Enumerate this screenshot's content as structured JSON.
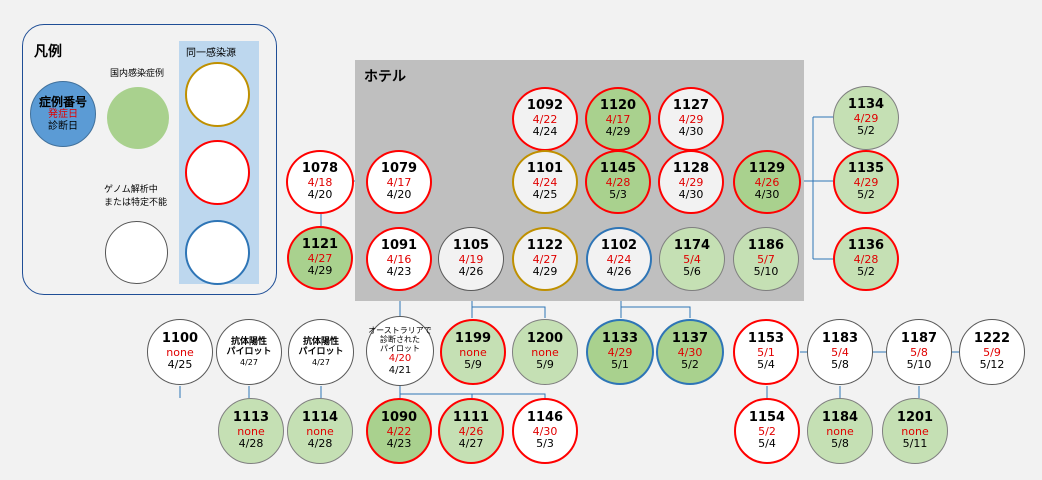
{
  "legend": {
    "title": "凡例",
    "same_source_title": "同一感染源",
    "domestic_label": "国内感染症例",
    "genome_label_line1": "ゲノム解析中",
    "genome_label_line2": "または特定不能",
    "key_id": "症例番号",
    "key_onset": "発症日",
    "key_diag": "診断日"
  },
  "hotel": {
    "label": "ホテル"
  },
  "colors": {
    "domestic_fill": "#a9d18e",
    "white_fill": "#ffffff",
    "hotel_fill": "#f2f2f2",
    "src_gold": "#bf9000",
    "src_red": "#ff0000",
    "src_blue": "#2e75b6",
    "onset_red": "#e00000",
    "key_fill": "#5b9bd5"
  },
  "cases": [
    {
      "id": "1092",
      "onset": "4/22",
      "diag": "4/24"
    },
    {
      "id": "1120",
      "onset": "4/17",
      "diag": "4/29"
    },
    {
      "id": "1127",
      "onset": "4/29",
      "diag": "4/30"
    },
    {
      "id": "1134",
      "onset": "4/29",
      "diag": "5/2"
    },
    {
      "id": "1078",
      "onset": "4/18",
      "diag": "4/20"
    },
    {
      "id": "1079",
      "onset": "4/17",
      "diag": "4/20"
    },
    {
      "id": "1101",
      "onset": "4/24",
      "diag": "4/25"
    },
    {
      "id": "1145",
      "onset": "4/28",
      "diag": "5/3"
    },
    {
      "id": "1128",
      "onset": "4/29",
      "diag": "4/30"
    },
    {
      "id": "1129",
      "onset": "4/26",
      "diag": "4/30"
    },
    {
      "id": "1135",
      "onset": "4/29",
      "diag": "5/2"
    },
    {
      "id": "1121",
      "onset": "4/27",
      "diag": "4/29"
    },
    {
      "id": "1091",
      "onset": "4/16",
      "diag": "4/23"
    },
    {
      "id": "1105",
      "onset": "4/19",
      "diag": "4/26"
    },
    {
      "id": "1122",
      "onset": "4/27",
      "diag": "4/29"
    },
    {
      "id": "1102",
      "onset": "4/24",
      "diag": "4/26"
    },
    {
      "id": "1174",
      "onset": "5/4",
      "diag": "5/6"
    },
    {
      "id": "1186",
      "onset": "5/7",
      "diag": "5/10"
    },
    {
      "id": "1136",
      "onset": "4/28",
      "diag": "5/2"
    },
    {
      "id": "1100",
      "onset": "none",
      "diag": "4/25"
    },
    {
      "id": "1199",
      "onset": "none",
      "diag": "5/9"
    },
    {
      "id": "1200",
      "onset": "none",
      "diag": "5/9"
    },
    {
      "id": "1133",
      "onset": "4/29",
      "diag": "5/1"
    },
    {
      "id": "1137",
      "onset": "4/30",
      "diag": "5/2"
    },
    {
      "id": "1153",
      "onset": "5/1",
      "diag": "5/4"
    },
    {
      "id": "1183",
      "onset": "5/4",
      "diag": "5/8"
    },
    {
      "id": "1187",
      "onset": "5/8",
      "diag": "5/10"
    },
    {
      "id": "1222",
      "onset": "5/9",
      "diag": "5/12"
    },
    {
      "id": "1113",
      "onset": "none",
      "diag": "4/28"
    },
    {
      "id": "1114",
      "onset": "none",
      "diag": "4/28"
    },
    {
      "id": "1090",
      "onset": "4/22",
      "diag": "4/23"
    },
    {
      "id": "1111",
      "onset": "4/26",
      "diag": "4/27"
    },
    {
      "id": "1146",
      "onset": "4/30",
      "diag": "5/3"
    },
    {
      "id": "1154",
      "onset": "5/2",
      "diag": "5/4"
    },
    {
      "id": "1184",
      "onset": "none",
      "diag": "5/8"
    },
    {
      "id": "1201",
      "onset": "none",
      "diag": "5/11"
    }
  ],
  "pilots": [
    {
      "line1": "抗体陽性",
      "line2": "パイロット",
      "date": "4/27"
    },
    {
      "line1": "抗体陽性",
      "line2": "パイロット",
      "date": "4/27"
    }
  ],
  "australia": {
    "line1": "オーストラリアで",
    "line2": "診断された",
    "line3": "パイロット",
    "onset": "4/20",
    "diag": "4/21"
  }
}
